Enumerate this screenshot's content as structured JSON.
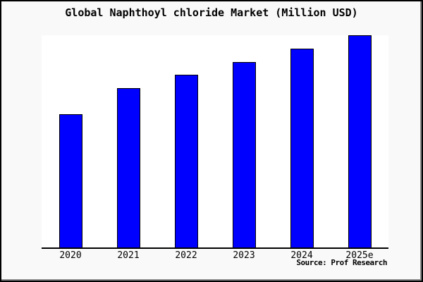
{
  "page": {
    "background_color": "#f9f9f9",
    "frame_color": "#000000",
    "shadow_color": "#8b8b8b"
  },
  "chart_data": {
    "type": "bar",
    "title": "Global Naphthoyl chloride Market (Million USD)",
    "categories": [
      "2020",
      "2021",
      "2022",
      "2023",
      "2024",
      "2025e"
    ],
    "values": [
      62.8,
      75.1,
      81.4,
      87.4,
      93.7,
      100
    ],
    "ylim": [
      0,
      100
    ],
    "xlabel": "",
    "ylabel": "",
    "y_axis_visible": false,
    "grid": false,
    "legend": false,
    "bar_color": "#0000ff",
    "bar_border_color": "#000000",
    "plot_background": "#ffffff",
    "source": "Source: Prof Research"
  }
}
